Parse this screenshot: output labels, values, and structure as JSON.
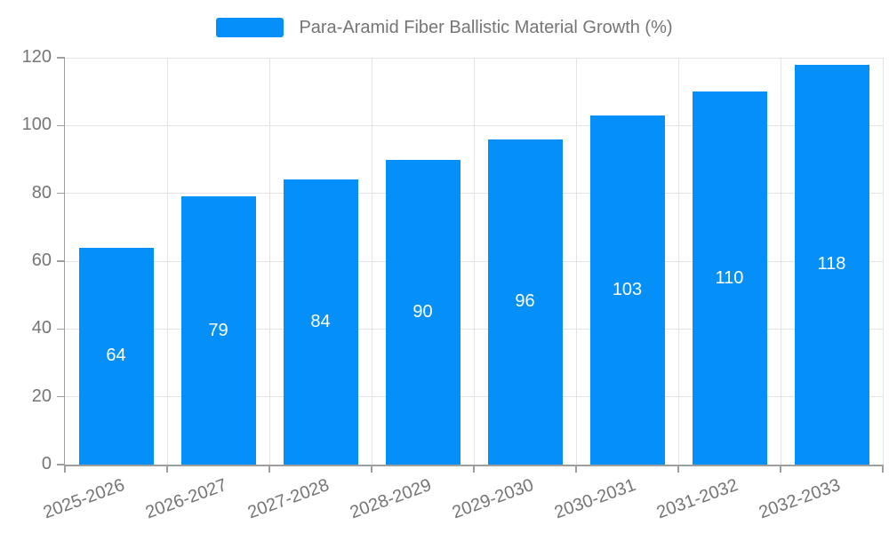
{
  "legend": {
    "label": "Para-Aramid Fiber Ballistic Material Growth (%)"
  },
  "colors": {
    "bar": "#0590f9",
    "legend_text": "#757575",
    "axis_text": "#757575",
    "value_label": "#ffffff",
    "grid": "#e3e3e3",
    "axis_line": "#9e9e9e",
    "background": "#ffffff"
  },
  "chart_data": {
    "type": "bar",
    "title": "Para-Aramid Fiber Ballistic Material Growth (%)",
    "categories": [
      "2025-2026",
      "2026-2027",
      "2027-2028",
      "2028-2029",
      "2029-2030",
      "2030-2031",
      "2031-2032",
      "2032-2033"
    ],
    "values": [
      64,
      79,
      84,
      90,
      96,
      103,
      110,
      118
    ],
    "xlabel": "",
    "ylabel": "",
    "ylim": [
      0,
      120
    ],
    "ytick_step": 20,
    "yticks": [
      0,
      20,
      40,
      60,
      80,
      100,
      120
    ],
    "grid": true,
    "legend_position": "top-center",
    "value_labels": "inside-center",
    "x_label_rotation": -20
  }
}
